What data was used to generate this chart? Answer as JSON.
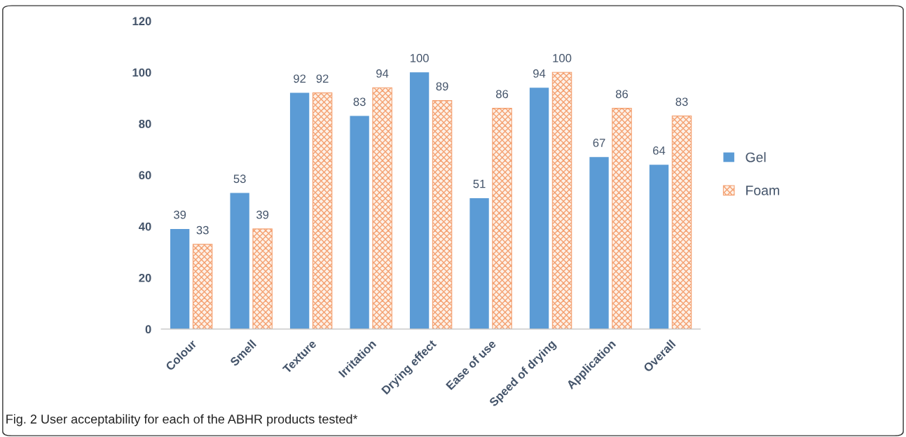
{
  "chart_data": {
    "type": "bar",
    "categories": [
      "Colour",
      "Smell",
      "Texture",
      "Irritation",
      "Drying effect",
      "Ease of use",
      "Speed of drying",
      "Application",
      "Overall"
    ],
    "series": [
      {
        "name": "Gel",
        "color": "#5b9bd5",
        "values": [
          39,
          53,
          92,
          83,
          100,
          51,
          94,
          67,
          64
        ]
      },
      {
        "name": "Foam",
        "color": "#f4a070",
        "values": [
          33,
          39,
          92,
          94,
          89,
          86,
          100,
          86,
          83
        ]
      }
    ],
    "ylim": [
      0,
      120
    ],
    "yticks": [
      0,
      20,
      40,
      60,
      80,
      100,
      120
    ],
    "data_labels": true,
    "grid": false,
    "legend": "right",
    "annotations": [
      "Fig. 2 User acceptability for each of the ABHR products tested*"
    ]
  }
}
